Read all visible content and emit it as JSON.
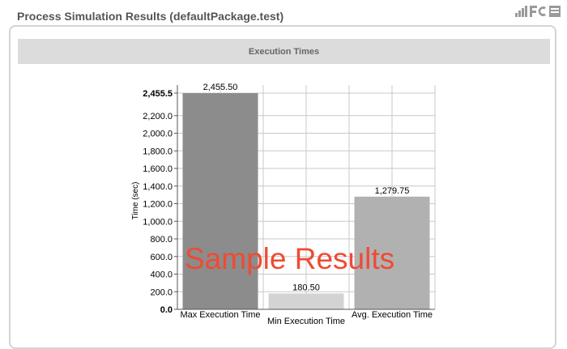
{
  "header": {
    "title": "Process Simulation Results (defaultPackage.test)"
  },
  "section": {
    "title": "Execution Times"
  },
  "watermark": {
    "text": "Sample Results"
  },
  "colors": {
    "bar_max": "#8c8c8c",
    "bar_min": "#d3d3d3",
    "bar_avg": "#b1b1b1",
    "watermark": "#f04a33",
    "header_bg": "#dcdcdc"
  },
  "chart_data": {
    "type": "bar",
    "categories": [
      "Max Execution Time",
      "Min Execution Time",
      "Avg. Execution Time"
    ],
    "values": [
      2455.5,
      180.5,
      1279.75
    ],
    "value_labels": [
      "2,455.50",
      "180.50",
      "1,279.75"
    ],
    "ylabel": "Time (sec)",
    "ylim": [
      0,
      2455.5
    ],
    "yticks": [
      0,
      200,
      400,
      600,
      800,
      1000,
      1200,
      1400,
      1600,
      1800,
      2000,
      2200,
      2455.5
    ],
    "ytick_labels": [
      "0.0",
      "200.0",
      "400.0",
      "600.0",
      "800.0",
      "1,000.0",
      "1,200.0",
      "1,400.0",
      "1,600.0",
      "1,800.0",
      "2,000.0",
      "2,200.0",
      "2,455.5"
    ],
    "grid": true,
    "legend": "none"
  }
}
